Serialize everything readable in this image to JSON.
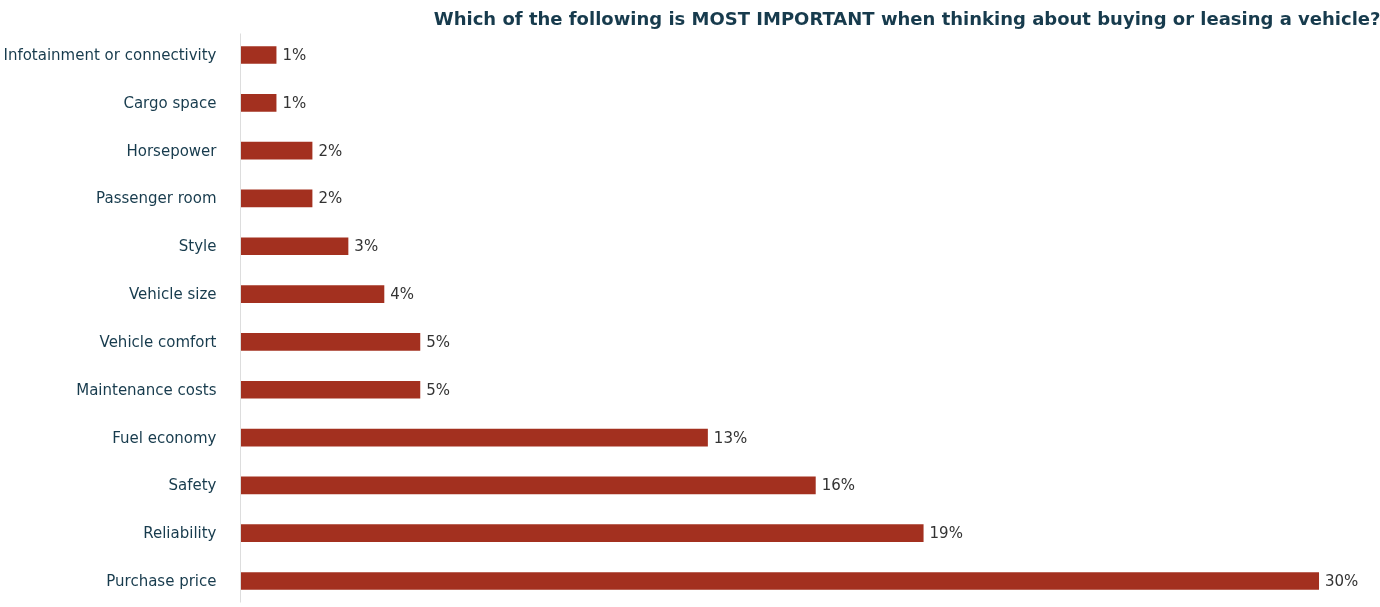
{
  "chart_data": {
    "type": "bar",
    "orientation": "horizontal",
    "title": "Which of the following is MOST IMPORTANT when thinking about buying or leasing a vehicle?",
    "categories": [
      "Infotainment or connectivity",
      "Cargo space",
      "Horsepower",
      "Passenger room",
      "Style",
      "Vehicle size",
      "Vehicle comfort",
      "Maintenance costs",
      "Fuel economy",
      "Safety",
      "Reliability",
      "Purchase price"
    ],
    "values": [
      1,
      1,
      2,
      2,
      3,
      4,
      5,
      5,
      13,
      16,
      19,
      30
    ],
    "value_labels": [
      "1%",
      "1%",
      "2%",
      "2%",
      "3%",
      "4%",
      "5%",
      "5%",
      "13%",
      "16%",
      "19%",
      "30%"
    ],
    "color": "#a3301f",
    "grid": false
  }
}
